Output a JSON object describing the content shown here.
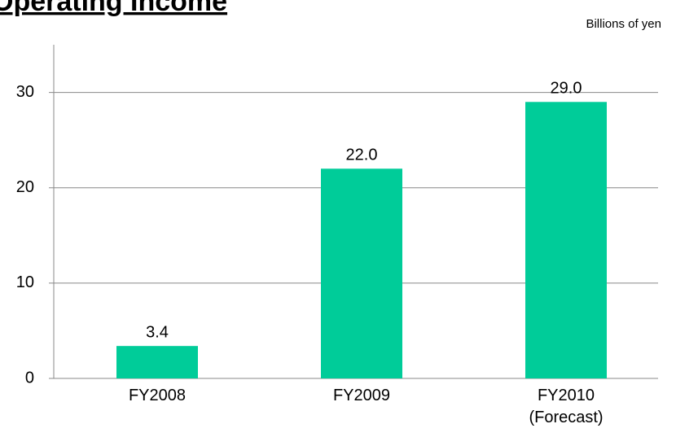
{
  "chart_data": {
    "type": "bar",
    "title": "Operating Income",
    "unit_label": "Billions of  yen",
    "categories": [
      "FY2008",
      "FY2009",
      "FY2010\n(Forecast)"
    ],
    "values": [
      3.4,
      22,
      29
    ],
    "value_labels": [
      "3.4",
      "22.0",
      "29.0"
    ],
    "color": "#00cc99",
    "ylim": [
      0,
      35
    ],
    "yticks": [
      0,
      10,
      20,
      30
    ],
    "grid": true
  }
}
